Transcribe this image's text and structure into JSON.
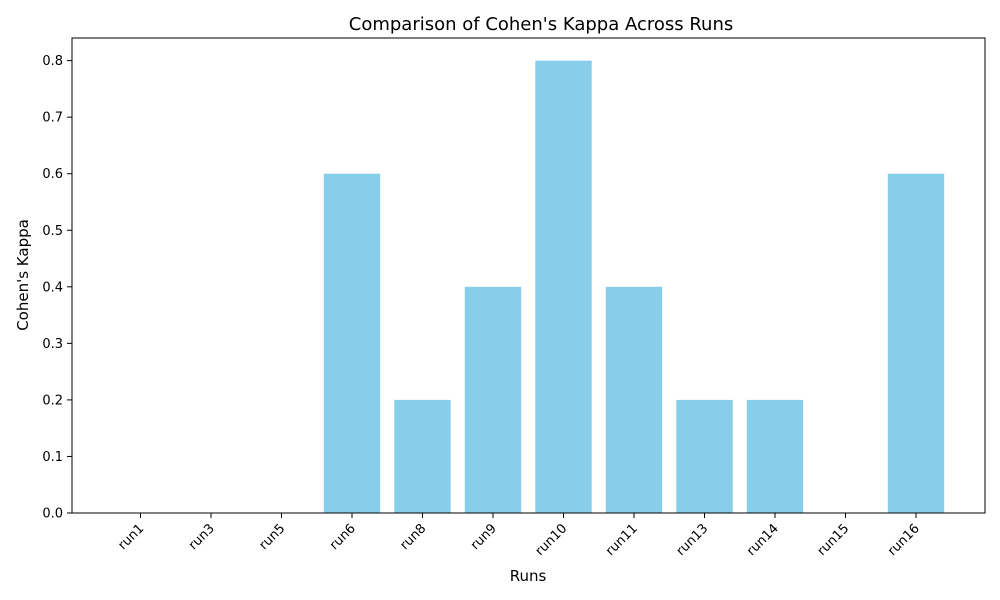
{
  "chart_data": {
    "type": "bar",
    "title": "Comparison of Cohen's Kappa Across Runs",
    "xlabel": "Runs",
    "ylabel": "Cohen's Kappa",
    "categories": [
      "run1",
      "run3",
      "run5",
      "run6",
      "run8",
      "run9",
      "run10",
      "run11",
      "run13",
      "run14",
      "run15",
      "run16"
    ],
    "values": [
      0.0,
      0.0,
      0.0,
      0.6,
      0.2,
      0.4,
      0.8,
      0.4,
      0.2,
      0.2,
      0.0,
      0.6
    ],
    "ylim": [
      0,
      0.84
    ],
    "yticks": [
      "0.0",
      "0.1",
      "0.2",
      "0.3",
      "0.4",
      "0.5",
      "0.6",
      "0.7",
      "0.8"
    ],
    "bar_color": "#87CEEB",
    "grid": false,
    "legend": "none"
  }
}
